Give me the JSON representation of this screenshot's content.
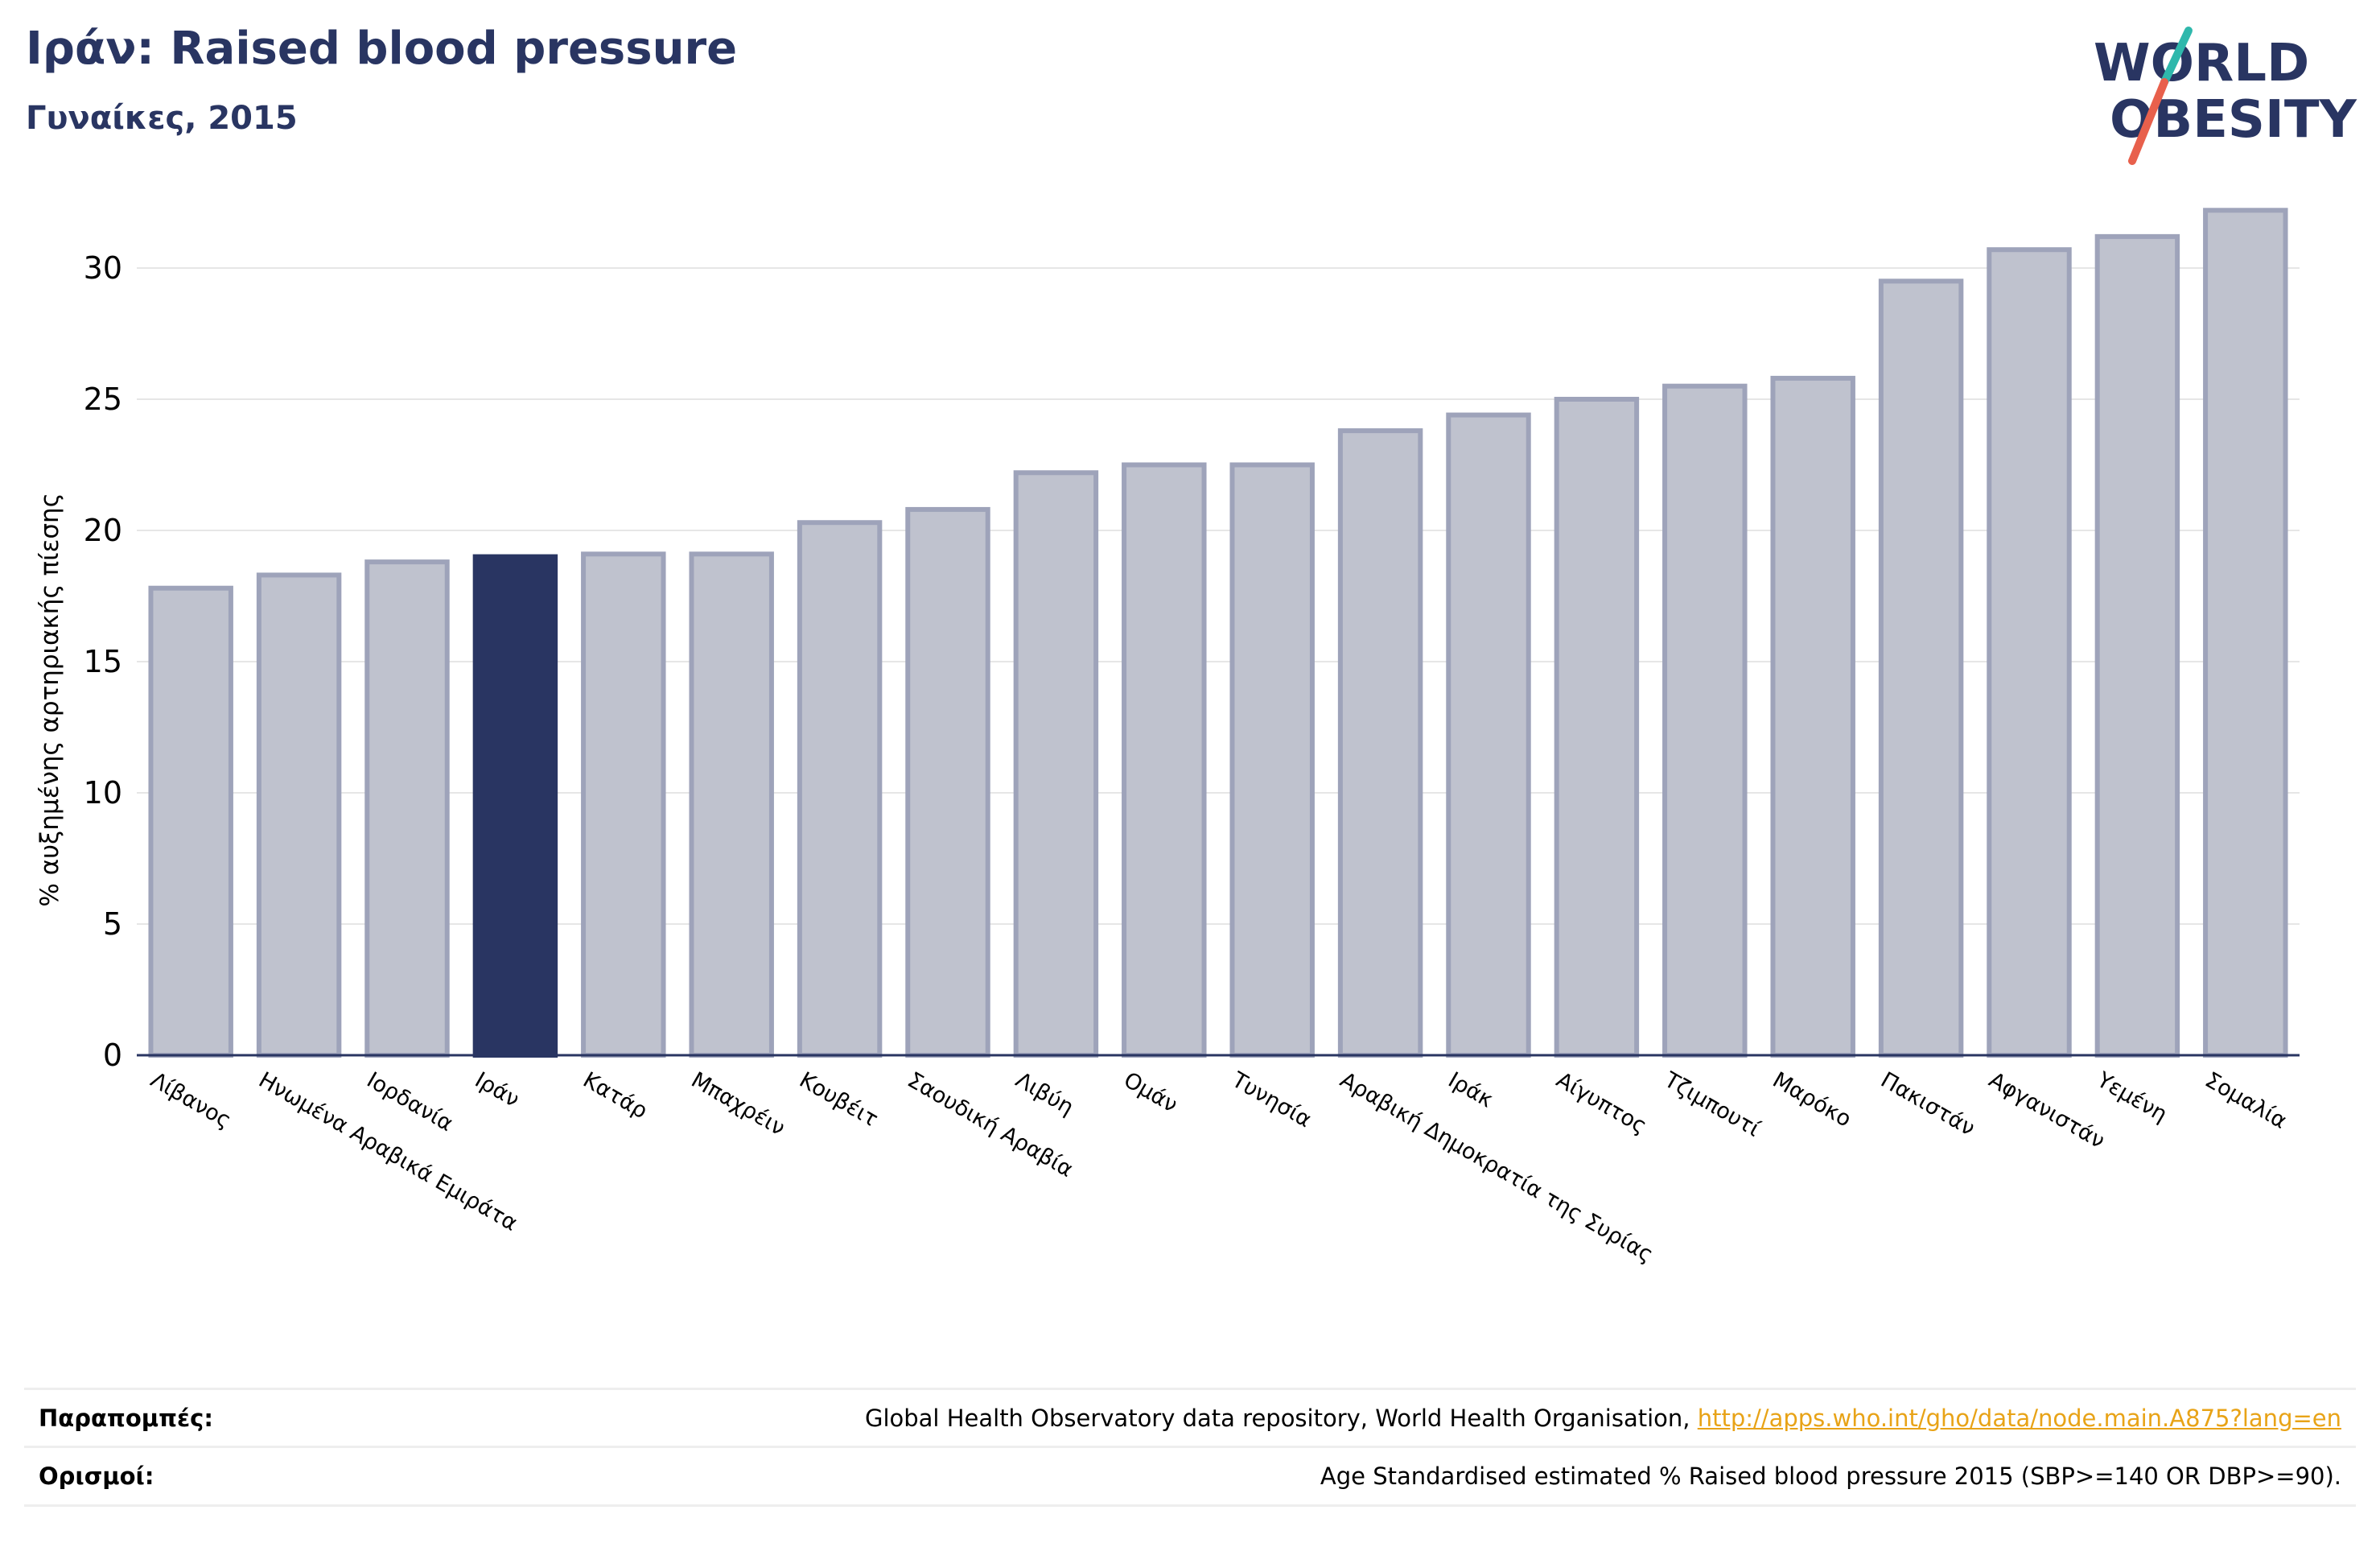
{
  "header": {
    "title": "Ιράν: Raised blood pressure",
    "subtitle": "Γυναίκες, 2015"
  },
  "logo": {
    "line1": "WORLD",
    "line2": "OBESITY",
    "colors": {
      "text": "#293562",
      "slash_teal": "#2fb8ac",
      "slash_red": "#e8604c"
    }
  },
  "colors": {
    "bar_default": "#bfc2ce",
    "bar_border": "#9ea3ba",
    "bar_highlight": "#293562",
    "grid": "#e6e6e6",
    "axis": "#293562"
  },
  "chart_data": {
    "type": "bar",
    "title": "Ιράν: Raised blood pressure",
    "subtitle": "Γυναίκες, 2015",
    "xlabel": "",
    "ylabel": "% αυξημένης αρτηριακής πίεσης",
    "ylim": [
      0,
      32.5
    ],
    "yticks": [
      0,
      5,
      10,
      15,
      20,
      25,
      30
    ],
    "grid": true,
    "highlight": "Ιράν",
    "categories": [
      "Λίβανος",
      "Ηνωμένα Αραβικά Εμιράτα",
      "Ιορδανία",
      "Ιράν",
      "Κατάρ",
      "Μπαχρέιν",
      "Κουβέιτ",
      "Σαουδική Αραβία",
      "Λιβύη",
      "Ομάν",
      "Τυνησία",
      "Αραβική Δημοκρατία της Συρίας",
      "Ιράκ",
      "Αίγυπτος",
      "Τζιμπουτί",
      "Μαρόκο",
      "Πακιστάν",
      "Αφγανιστάν",
      "Υεμένη",
      "Σομαλία"
    ],
    "values": [
      17.8,
      18.3,
      18.8,
      19.0,
      19.1,
      19.1,
      20.3,
      20.8,
      22.2,
      22.5,
      22.5,
      23.8,
      24.4,
      25.0,
      25.5,
      25.8,
      29.5,
      30.7,
      31.2,
      32.2
    ]
  },
  "footer": {
    "references_label": "Παραπομπές:",
    "references_text": "Global Health Observatory data repository, World Health Organisation, ",
    "references_link": "http://apps.who.int/gho/data/node.main.A875?lang=en",
    "definitions_label": "Ορισμοί:",
    "definitions_text": "Age Standardised estimated % Raised blood pressure 2015 (SBP>=140 OR DBP>=90)."
  }
}
